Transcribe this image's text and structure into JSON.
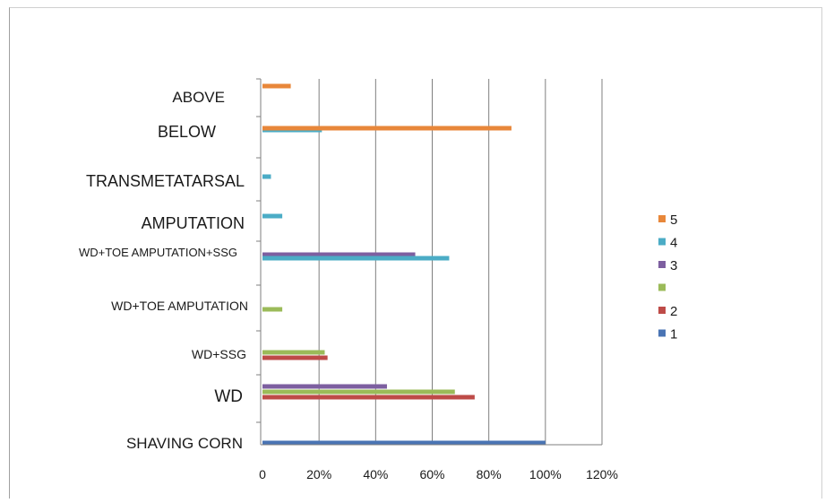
{
  "chart_data": {
    "type": "bar",
    "orientation": "horizontal",
    "categories": [
      "SHAVING CORN",
      "WD",
      "WD+SSG",
      "WD+TOE AMPUTATION",
      "WD+TOE AMPUTATION+SSG",
      "AMPUTATION",
      "TRANSMETATARSAL",
      "BELOW",
      "ABOVE"
    ],
    "x_tick_labels": [
      "0",
      "20%",
      "40%",
      "60%",
      "80%",
      "100%",
      "120%"
    ],
    "xlim": [
      0,
      120
    ],
    "grid": "vertical",
    "legend_position": "right",
    "series": [
      {
        "name": "1",
        "color": "#4a74b4",
        "values": [
          100,
          null,
          null,
          null,
          null,
          null,
          null,
          null,
          null
        ]
      },
      {
        "name": "2",
        "color": "#be4b48",
        "values": [
          null,
          75,
          23,
          null,
          null,
          null,
          null,
          null,
          null
        ]
      },
      {
        "name": "3",
        "color": "#9bbb59",
        "values": [
          null,
          68,
          22,
          7,
          null,
          null,
          null,
          null,
          null
        ]
      },
      {
        "name": "",
        "color": "#7d5fa0",
        "values": [
          null,
          44,
          null,
          null,
          54,
          null,
          null,
          null,
          null
        ]
      },
      {
        "name": "4",
        "color": "#4bacc6",
        "values": [
          null,
          null,
          null,
          null,
          66,
          7,
          3,
          21,
          null
        ]
      },
      {
        "name": "5",
        "color": "#e8873a",
        "values": [
          null,
          null,
          null,
          null,
          null,
          null,
          null,
          88,
          10
        ]
      }
    ],
    "legend": [
      {
        "label": "5",
        "color": "#e8873a"
      },
      {
        "label": "4",
        "color": "#4bacc6"
      },
      {
        "label": "3",
        "color": "#7d5fa0"
      },
      {
        "label": "",
        "color": "#9bbb59"
      },
      {
        "label": "2",
        "color": "#be4b48"
      },
      {
        "label": "1",
        "color": "#4a74b4"
      }
    ]
  }
}
